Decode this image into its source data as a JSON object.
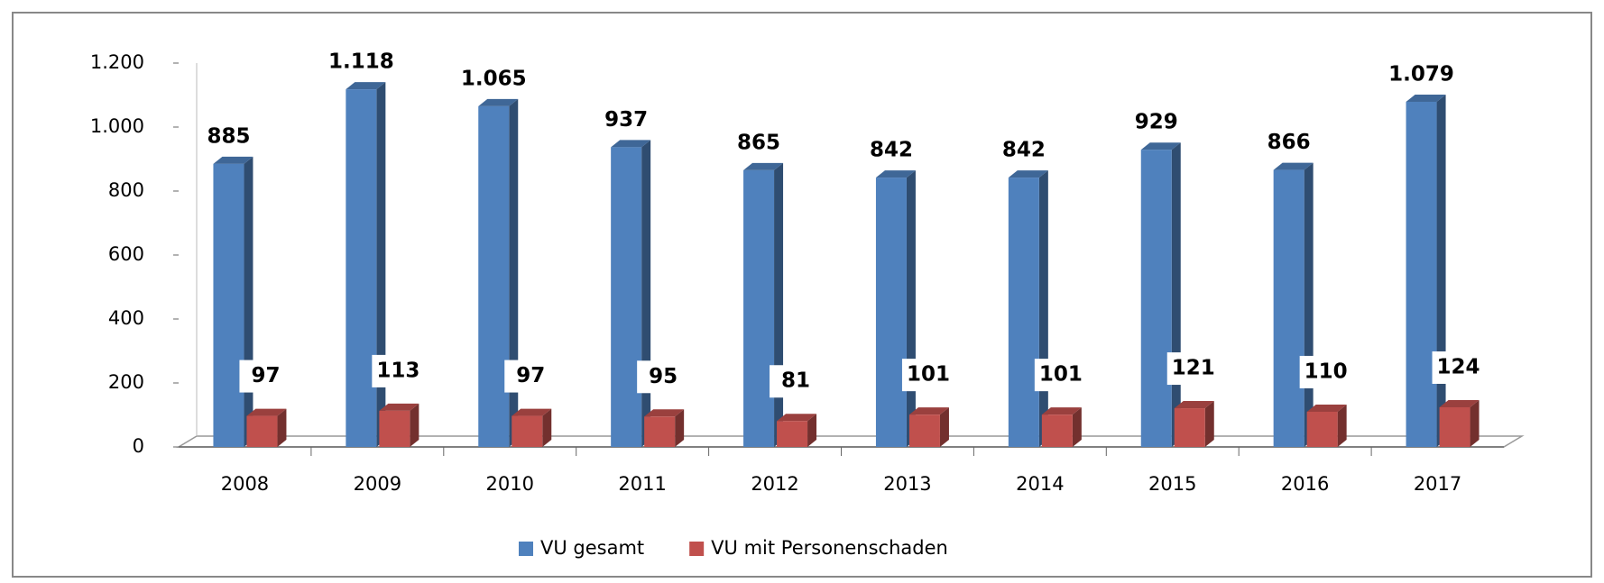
{
  "chart_data": {
    "type": "bar3d",
    "categories": [
      "2008",
      "2009",
      "2010",
      "2011",
      "2012",
      "2013",
      "2014",
      "2015",
      "2016",
      "2017"
    ],
    "series": [
      {
        "name": "VU gesamt",
        "color": "#4f81bd",
        "values": [
          885,
          1118,
          1065,
          937,
          865,
          842,
          842,
          929,
          866,
          1079
        ],
        "value_labels": [
          "885",
          "1.118",
          "1.065",
          "937",
          "865",
          "842",
          "842",
          "929",
          "866",
          "1.079"
        ]
      },
      {
        "name": "VU mit Personenschaden",
        "color": "#c0504d",
        "values": [
          97,
          113,
          97,
          95,
          81,
          101,
          101,
          121,
          110,
          124
        ]
      }
    ],
    "ylim": [
      0,
      1200
    ],
    "yticks": [
      0,
      200,
      400,
      600,
      800,
      {
        "value": 1000,
        "label": "1.000"
      },
      {
        "value": 1200,
        "label": "1.200"
      }
    ],
    "legend": "bottom"
  }
}
